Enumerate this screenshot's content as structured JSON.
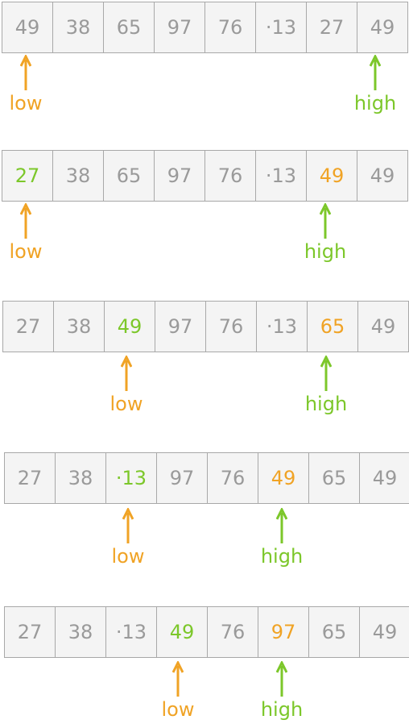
{
  "colors": {
    "low": "#f0a325",
    "high": "#7cc72a",
    "cell_text": "#9a9a9a",
    "cell_bg": "#f4f4f4",
    "border": "#a8a8a8"
  },
  "pointer_labels": {
    "low": "low",
    "high": "high"
  },
  "steps": [
    {
      "cells": [
        "49",
        "38",
        "65",
        "97",
        "76",
        "·13",
        "27",
        "49"
      ],
      "highlight": {},
      "low_index": 0,
      "high_index": 7
    },
    {
      "cells": [
        "27",
        "38",
        "65",
        "97",
        "76",
        "·13",
        "49",
        "49"
      ],
      "highlight": {
        "0": "green",
        "6": "orange"
      },
      "low_index": 0,
      "high_index": 6
    },
    {
      "cells": [
        "27",
        "38",
        "49",
        "97",
        "76",
        "·13",
        "65",
        "49"
      ],
      "highlight": {
        "2": "green",
        "6": "orange"
      },
      "low_index": 2,
      "high_index": 6
    },
    {
      "cells": [
        "27",
        "38",
        "·13",
        "97",
        "76",
        "49",
        "65",
        "49"
      ],
      "highlight": {
        "2": "green",
        "5": "orange"
      },
      "low_index": 2,
      "high_index": 5
    },
    {
      "cells": [
        "27",
        "38",
        "·13",
        "49",
        "76",
        "97",
        "65",
        "49"
      ],
      "highlight": {
        "3": "green",
        "5": "orange"
      },
      "low_index": 3,
      "high_index": 5
    }
  ]
}
